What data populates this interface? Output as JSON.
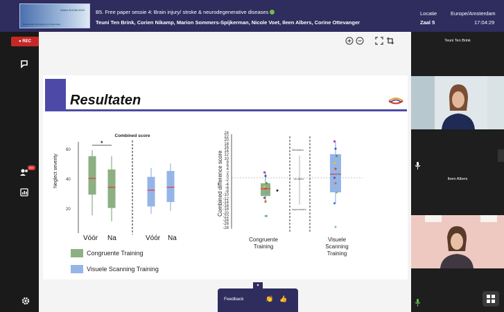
{
  "header": {
    "logo_title": "Online EOOM 2024",
    "logo_subtitle": "Nederlandse Vereniging voor Neurologie",
    "session_title": "B5. Free paper sessie 4: Brain injury/ stroke & neurodegenerative diseases",
    "speakers": "Teuni Ten Brink, Corien Nikamp, Marion Sommers-Spijkerman, Nicole Voet, Ileen Albers, Corine Ottevanger",
    "location_label": "Locatie",
    "location_value": "Zaal 5",
    "timezone": "Europe/Amsterdam",
    "time": "17:04:29"
  },
  "sidebar": {
    "rec_label": "● REC",
    "participants_badge": "99+"
  },
  "slide": {
    "title": "Resultaten",
    "left_chart": {
      "title": "Combined score",
      "ylabel": "Neglect severity",
      "yticks": [
        "60",
        "40",
        "20"
      ],
      "xticks": [
        "Vóór",
        "Na",
        "Vóór",
        "Na"
      ],
      "significance": "*"
    },
    "legend": [
      {
        "label": "Congruente Training",
        "color": "#8daf84"
      },
      {
        "label": "Visuele Scanning Training",
        "color": "#95b5e8"
      }
    ],
    "right_chart": {
      "ylabel": "Combined difference score",
      "yticks": [
        "24",
        "22",
        "20",
        "18",
        "16",
        "14",
        "12",
        "10",
        "8",
        "6",
        "4",
        "2",
        "0",
        "-2",
        "-4",
        "-6",
        "-8",
        "-10",
        "-12",
        "-14",
        "-16",
        "-18",
        "-20",
        "-22",
        "-24",
        "-26",
        "-28"
      ],
      "annotations": [
        "Detoriation",
        "No effect",
        "Improvement"
      ],
      "xlabel_1": "Congruente\nTraining",
      "xlabel_2": "Visuele\nScanning\nTraining"
    }
  },
  "feedback": {
    "label": "Feedback",
    "tab_icon": "▾"
  },
  "participants": [
    {
      "name": "Teuni Ten Brink"
    },
    {
      "name": "Ileen Albers"
    }
  ],
  "chart_data": [
    {
      "type": "box",
      "title": "Combined score",
      "ylabel": "Neglect severity",
      "ylim": [
        0,
        65
      ],
      "categories": [
        "Vóór",
        "Na",
        "Vóór",
        "Na"
      ],
      "series": [
        {
          "name": "Congruente Training",
          "boxes": [
            {
              "median": 37,
              "q1": 26,
              "q3": 52,
              "min": 12,
              "max": 56
            },
            {
              "median": 31,
              "q1": 17,
              "q3": 43,
              "min": 8,
              "max": 52
            }
          ]
        },
        {
          "name": "Visuele Scanning Training",
          "boxes": [
            {
              "median": 29,
              "q1": 18,
              "q3": 38,
              "min": 13,
              "max": 44
            },
            {
              "median": 31,
              "q1": 21,
              "q3": 42,
              "min": 15,
              "max": 47
            }
          ]
        }
      ],
      "significance": [
        {
          "between": [
            "Vóór",
            "Na"
          ],
          "group": "Congruente Training",
          "label": "*"
        }
      ]
    },
    {
      "type": "box",
      "ylabel": "Combined difference score",
      "ylim": [
        -28,
        24
      ],
      "categories": [
        "Congruente Training",
        "Visuele Scanning Training"
      ],
      "boxes": [
        {
          "name": "Congruente Training",
          "median": -6,
          "q1": -10,
          "q3": -3,
          "min": -14,
          "max": 3,
          "points": [
            3,
            1,
            -3,
            -5,
            -6,
            -8,
            -11,
            -13,
            -21
          ],
          "outliers": [
            -7,
            -21
          ]
        },
        {
          "name": "Visuele Scanning Training",
          "median": 2,
          "q1": -8,
          "q3": 13,
          "min": -14,
          "max": 20,
          "points": [
            20,
            16,
            12,
            8,
            5,
            2,
            0,
            -3,
            -8,
            -14
          ],
          "outliers": [
            -27
          ]
        }
      ]
    }
  ]
}
